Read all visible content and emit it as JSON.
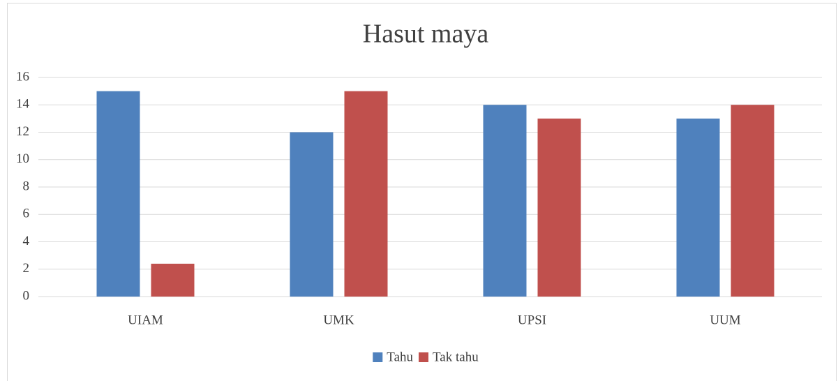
{
  "chart_data": {
    "type": "bar",
    "title": "Hasut maya",
    "categories": [
      "UIAM",
      "UMK",
      "UPSI",
      "UUM"
    ],
    "series": [
      {
        "name": "Tahu",
        "color": "#4f81bd",
        "values": [
          15,
          12,
          14,
          13
        ]
      },
      {
        "name": "Tak tahu",
        "color": "#c0504d",
        "values": [
          2.4,
          15,
          13,
          14
        ]
      }
    ],
    "ylim": [
      0,
      16
    ],
    "yticks": [
      0,
      2,
      4,
      6,
      8,
      10,
      12,
      14,
      16
    ],
    "grid": true,
    "legend": "bottom"
  }
}
